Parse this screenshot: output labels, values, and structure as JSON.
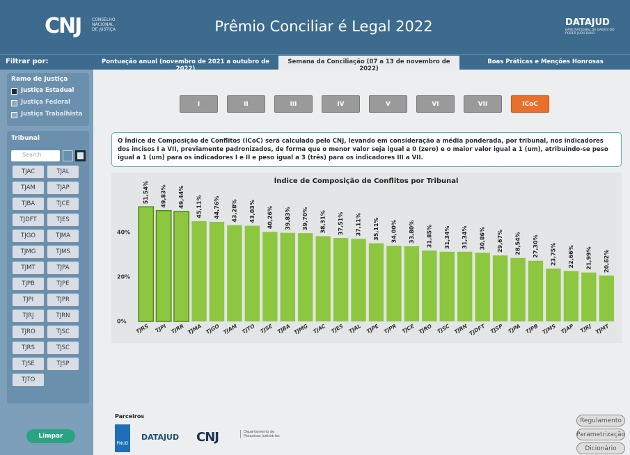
{
  "header": {
    "org_logo": "CNJ",
    "org_name_lines": [
      "CONSELHO",
      "NACIONAL",
      "DE JUSTIÇA"
    ],
    "title": "Prêmio Conciliar é Legal 2022",
    "brand": "DATAJUD",
    "brand_subtitle": "BASE NACIONAL DE DADOS DO PODER JUDICIÁRIO"
  },
  "sidebar": {
    "filter_title": "Filtrar por:",
    "branch": {
      "title": "Ramo de Justiça",
      "options": [
        {
          "label": "Justiça Estadual",
          "checked": true
        },
        {
          "label": "Justiça Federal",
          "checked": false
        },
        {
          "label": "Justiça Trabalhista",
          "checked": false
        }
      ]
    },
    "tribunal": {
      "title": "Tribunal",
      "search_placeholder": "Search",
      "items": [
        "TJAC",
        "TJAL",
        "TJAM",
        "TJAP",
        "TJBA",
        "TJCE",
        "TJDFT",
        "TJES",
        "TJGO",
        "TJMA",
        "TJMG",
        "TJMS",
        "TJMT",
        "TJPA",
        "TJPB",
        "TJPE",
        "TJPI",
        "TJPR",
        "TJRJ",
        "TJRN",
        "TJRO",
        "TJSC",
        "TJRS",
        "TJSC",
        "TJSE",
        "TJSP",
        "TJTO"
      ]
    },
    "clear": "Limpar"
  },
  "tabs": {
    "items": [
      "Pontuação anual (novembro de 2021 a outubro de 2022)",
      "Semana da Conciliação (07 a 13 de novembro de 2022)",
      "Boas Práticas e Menções Honrosas"
    ],
    "active": 1
  },
  "indicators": {
    "items": [
      "I",
      "II",
      "III",
      "IV",
      "V",
      "VI",
      "VII",
      "ICoC"
    ],
    "active": 7
  },
  "description": "O Índice de Composição de Conflitos (ICoC) será calculado pelo CNJ, levando em consideração a média ponderada, por tribunal, nos indicadores dos incisos I a VII, previamente padronizados, de forma que o menor valor seja igual a 0 (zero) e o maior valor igual a 1 (um), atribuindo-se peso igual a 1 (um) para os indicadores I e II e peso igual a 3 (três) para os indicadores III a VII.",
  "chart_data": {
    "type": "bar",
    "title": "Índice de Composição de Conflitos por Tribunal",
    "categories": [
      "TJRS",
      "TJPI",
      "TJRR",
      "TJMA",
      "TJGO",
      "TJAM",
      "TJTO",
      "TJSE",
      "TJBA",
      "TJMG",
      "TJAC",
      "TJES",
      "TJAL",
      "TJPE",
      "TJPR",
      "TJCE",
      "TJRO",
      "TJSC",
      "TJRN",
      "TJDFT",
      "TJSP",
      "TJPA",
      "TJPB",
      "TJMS",
      "TJAP",
      "TJRJ",
      "TJMT"
    ],
    "values": [
      51.54,
      49.83,
      49.44,
      45.11,
      44.76,
      43.28,
      43.03,
      40.26,
      39.83,
      39.7,
      38.31,
      37.51,
      37.11,
      35.11,
      34.0,
      33.8,
      31.85,
      31.34,
      31.34,
      30.86,
      29.67,
      28.54,
      27.3,
      23.75,
      22.66,
      21.99,
      20.62
    ],
    "value_labels": [
      "51,54%",
      "49,83%",
      "49,44%",
      "45,11%",
      "44,76%",
      "43,28%",
      "43,03%",
      "40,26%",
      "39,83%",
      "39,70%",
      "38,31%",
      "37,51%",
      "37,11%",
      "35,11%",
      "34,00%",
      "33,80%",
      "31,85%",
      "31,34%",
      "31,34%",
      "30,86%",
      "29,67%",
      "28,54%",
      "27,30%",
      "23,75%",
      "22,66%",
      "21,99%",
      "20,62%"
    ],
    "color": "#8dc63f",
    "highlight_color": "#4e8a1c",
    "highlight": [
      0,
      1,
      2
    ],
    "ylim": [
      0,
      56
    ],
    "yticks": [
      {
        "value": 0,
        "label": "0%"
      },
      {
        "value": 20,
        "label": "20%"
      },
      {
        "value": 40,
        "label": "40%"
      }
    ],
    "grid": false
  },
  "footer": {
    "partners_title": "Parceiros",
    "partners": [
      "PNUD",
      "DATAJUD",
      "CNJ",
      "Departamento de Pesquisas Judiciárias"
    ],
    "buttons": [
      "Regulamento",
      "Parametrização",
      "Dicionário"
    ]
  }
}
